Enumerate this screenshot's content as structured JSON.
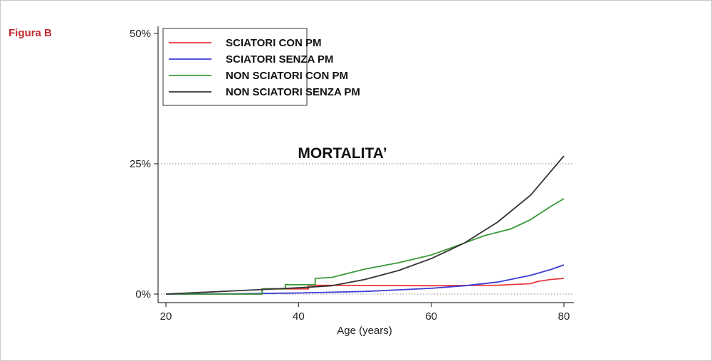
{
  "figure_label": "Figura B",
  "chart_data": {
    "type": "line",
    "title": "",
    "annotation": "MORTALITA’",
    "xlabel": "Age (years)",
    "ylabel": "",
    "xlim": [
      20,
      80
    ],
    "ylim": [
      0,
      50
    ],
    "x_ticks": [
      20,
      40,
      60,
      80
    ],
    "y_ticks": [
      0,
      25,
      50
    ],
    "y_tick_labels": [
      "0%",
      "25%",
      "50%"
    ],
    "gridlines_y": [
      0,
      25
    ],
    "legend_position": "top-left",
    "series": [
      {
        "name": "SCIATORI CON PM",
        "color": "#e8383d",
        "x": [
          20,
          34.5,
          34.5,
          41.5,
          41.5,
          60,
          70,
          75,
          76,
          78,
          80
        ],
        "y": [
          0,
          0,
          1.0,
          1.0,
          1.7,
          1.6,
          1.7,
          2.0,
          2.4,
          2.8,
          3.0
        ]
      },
      {
        "name": "SCIATORI SENZA PM",
        "color": "#3b3bd6",
        "x": [
          20,
          30,
          40,
          50,
          55,
          60,
          65,
          70,
          75,
          78,
          80
        ],
        "y": [
          0,
          0.05,
          0.2,
          0.5,
          0.8,
          1.1,
          1.6,
          2.3,
          3.6,
          4.7,
          5.6
        ]
      },
      {
        "name": "NON  SCIATORI CON PM",
        "color": "#3a9a3a",
        "x": [
          20,
          34.5,
          34.5,
          38,
          38,
          42.5,
          42.5,
          45,
          50,
          55,
          60,
          65,
          68,
          72,
          75,
          78,
          80
        ],
        "y": [
          0,
          0,
          1.0,
          1.0,
          1.8,
          1.8,
          3.0,
          3.2,
          4.8,
          6.0,
          7.5,
          9.8,
          11.2,
          12.5,
          14.3,
          16.8,
          18.3
        ]
      },
      {
        "name": "NON  SCIATORI SENZA PM",
        "color": "#333333",
        "x": [
          20,
          25,
          30,
          35,
          40,
          45,
          50,
          55,
          60,
          65,
          70,
          75,
          80
        ],
        "y": [
          0,
          0.3,
          0.6,
          0.9,
          1.2,
          1.6,
          2.8,
          4.5,
          6.8,
          9.8,
          13.8,
          19.0,
          26.5
        ]
      }
    ]
  }
}
